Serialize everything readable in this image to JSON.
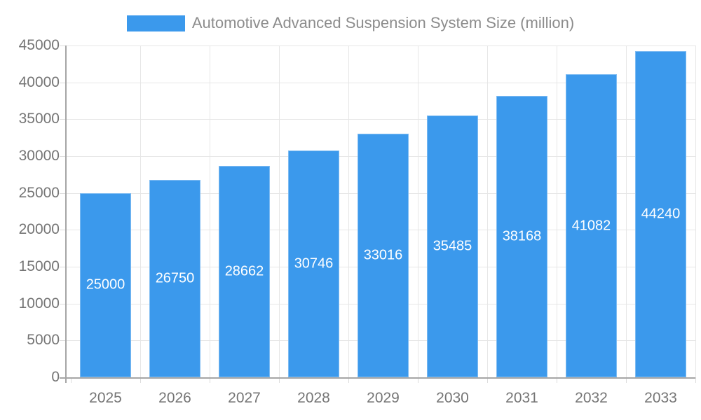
{
  "chart_data": {
    "type": "bar",
    "title": "Automotive Advanced Suspension System Size (million)",
    "categories": [
      "2025",
      "2026",
      "2027",
      "2028",
      "2029",
      "2030",
      "2031",
      "2032",
      "2033"
    ],
    "values": [
      25000,
      26750,
      28662,
      30746,
      33016,
      35485,
      38168,
      41082,
      44240
    ],
    "value_labels": [
      "25000",
      "26750",
      "28662",
      "30746",
      "33016",
      "35485",
      "38168",
      "41082",
      "44240"
    ],
    "yticks": [
      "0",
      "5000",
      "10000",
      "15000",
      "20000",
      "25000",
      "30000",
      "35000",
      "40000",
      "45000"
    ],
    "ylim": [
      0,
      45000
    ],
    "ytick_step": 5000,
    "xlabel": "",
    "ylabel": "",
    "grid": "on",
    "legend_position": "top-center",
    "colors": {
      "bar": "#3b99ec",
      "grid": "#e6e6e6",
      "axis": "#a6a6a6",
      "tick_label": "#757575",
      "legend_text": "#8c8c8c",
      "value_label": "#ffffff",
      "background": "#ffffff"
    }
  }
}
